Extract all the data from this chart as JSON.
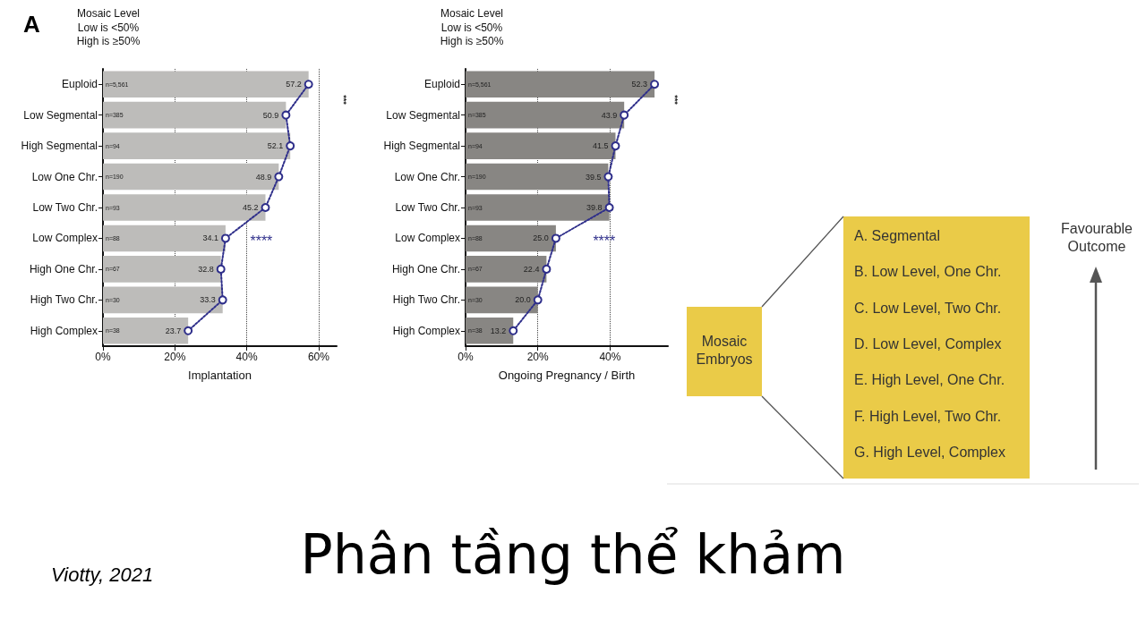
{
  "chart_data": [
    {
      "type": "bar",
      "orientation": "horizontal",
      "title": "Mosaic Level",
      "subtitle": "Low is <50%\nHigh is ≥50%",
      "xlabel": "Implantation",
      "categories": [
        "Euploid",
        "Low Segmental",
        "High Segmental",
        "Low One Chr.",
        "Low Two Chr.",
        "Low Complex",
        "High One Chr.",
        "High Two Chr.",
        "High Complex"
      ],
      "series": [
        {
          "type": "bar",
          "color": "#bdbcba",
          "values": [
            57.2,
            50.9,
            52.1,
            48.9,
            45.2,
            34.1,
            32.8,
            33.3,
            23.7
          ]
        },
        {
          "type": "line",
          "color": "#2e2e8a",
          "values": [
            57.2,
            50.9,
            52.1,
            48.9,
            45.2,
            34.1,
            32.8,
            33.3,
            23.7
          ],
          "value_labels": [
            "57.2",
            "50.9",
            "52.1",
            "48.9",
            "45.2",
            "34.1",
            "32.8",
            "33.3",
            "23.7"
          ]
        }
      ],
      "marker": "circle",
      "line_style": "dotted",
      "grid": "x",
      "xlim": [
        0,
        65
      ],
      "xticks": [
        {
          "value": 0,
          "label": "0%"
        },
        {
          "value": 20,
          "label": "20%"
        },
        {
          "value": 40,
          "label": "40%"
        },
        {
          "value": 60,
          "label": "60%"
        }
      ],
      "annotations": [
        "A",
        "n=5,561",
        "n=385",
        "n=94",
        "n=190",
        "n=93",
        "n=88",
        "n=67",
        "n=30",
        "n=38",
        "****",
        "***"
      ]
    },
    {
      "type": "bar",
      "orientation": "horizontal",
      "title": "Mosaic Level",
      "subtitle": "Low is <50%\nHigh is ≥50%",
      "xlabel": "Ongoing Pregnancy / Birth",
      "categories": [
        "Euploid",
        "Low Segmental",
        "High Segmental",
        "Low One Chr.",
        "Low Two Chr.",
        "Low Complex",
        "High One Chr.",
        "High Two Chr.",
        "High Complex"
      ],
      "series": [
        {
          "type": "bar",
          "color": "#888683",
          "values": [
            52.3,
            43.9,
            41.5,
            39.5,
            39.8,
            25.0,
            22.4,
            20.0,
            13.2
          ]
        },
        {
          "type": "line",
          "color": "#2e2e8a",
          "values": [
            52.3,
            43.9,
            41.5,
            39.5,
            39.8,
            25.0,
            22.4,
            20.0,
            13.2
          ],
          "value_labels": [
            "52.3",
            "43.9",
            "41.5",
            "39.5",
            "39.8",
            "25.0",
            "22.4",
            "20.0",
            "13.2"
          ]
        }
      ],
      "marker": "circle",
      "line_style": "dotted",
      "grid": "x",
      "xlim": [
        0,
        56
      ],
      "xticks": [
        {
          "value": 0,
          "label": "0%"
        },
        {
          "value": 20,
          "label": "20%"
        },
        {
          "value": 40,
          "label": "40%"
        }
      ],
      "annotations": [
        "n=5,561",
        "n=385",
        "n=94",
        "n=190",
        "n=93",
        "n=88",
        "n=67",
        "n=30",
        "n=38",
        "****",
        "***"
      ]
    },
    {
      "type": "other",
      "title": "Phân tầng thể khảm",
      "annotations": [
        "Mosaic Embryos",
        "A. Segmental",
        "B. Low Level, One Chr.",
        "C. Low Level, Two Chr.",
        "D. Low Level, Complex",
        "E. High Level, One Chr.",
        "F. High Level, Two Chr.",
        "G. High Level, Complex",
        "Favourable Outcome",
        "Viotty, 2021"
      ]
    }
  ]
}
